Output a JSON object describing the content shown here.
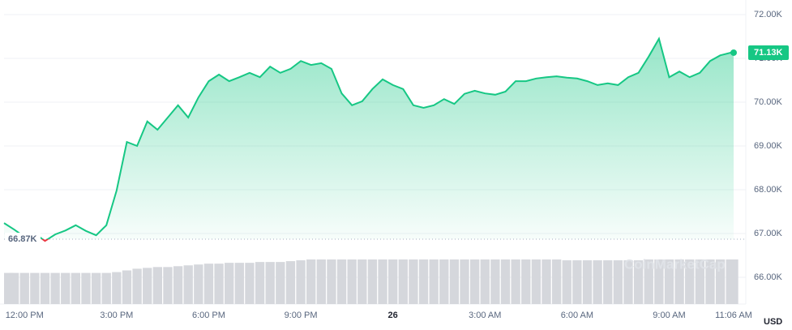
{
  "chart_data": {
    "type": "line",
    "x": [
      "11:20 AM",
      "11:40 AM",
      "12:00 PM",
      "12:20 PM",
      "12:40 PM",
      "1:00 PM",
      "1:20 PM",
      "1:40 PM",
      "2:00 PM",
      "2:20 PM",
      "2:40 PM",
      "3:00 PM",
      "3:20 PM",
      "3:40 PM",
      "4:00 PM",
      "4:20 PM",
      "4:40 PM",
      "5:00 PM",
      "5:20 PM",
      "5:40 PM",
      "6:00 PM",
      "6:20 PM",
      "6:40 PM",
      "7:00 PM",
      "7:20 PM",
      "7:40 PM",
      "8:00 PM",
      "8:20 PM",
      "8:40 PM",
      "9:00 PM",
      "9:20 PM",
      "9:40 PM",
      "10:00 PM",
      "10:20 PM",
      "10:40 PM",
      "11:00 PM",
      "11:20 PM",
      "11:40 PM",
      "12:00 AM",
      "12:20 AM",
      "12:40 AM",
      "1:00 AM",
      "1:20 AM",
      "1:40 AM",
      "2:00 AM",
      "2:20 AM",
      "2:40 AM",
      "3:00 AM",
      "3:20 AM",
      "3:40 AM",
      "4:00 AM",
      "4:20 AM",
      "4:40 AM",
      "5:00 AM",
      "5:20 AM",
      "5:40 AM",
      "6:00 AM",
      "6:20 AM",
      "6:40 AM",
      "7:00 AM",
      "7:20 AM",
      "7:40 AM",
      "8:00 AM",
      "8:20 AM",
      "8:40 AM",
      "9:00 AM",
      "9:20 AM",
      "9:40 AM",
      "10:00 AM",
      "10:20 AM",
      "10:40 AM",
      "11:00 AM",
      "11:06 AM"
    ],
    "series": [
      {
        "color": "#16c784",
        "values": [
          67240,
          67090,
          66925,
          67000,
          66830,
          66980,
          67070,
          67190,
          67060,
          66960,
          67190,
          67980,
          69090,
          69000,
          69560,
          69370,
          69650,
          69930,
          69650,
          70110,
          70480,
          70630,
          70480,
          70570,
          70670,
          70570,
          70810,
          70670,
          70760,
          70940,
          70850,
          70890,
          70760,
          70200,
          69930,
          70020,
          70300,
          70520,
          70390,
          70300,
          69930,
          69870,
          69930,
          70070,
          69960,
          70190,
          70260,
          70200,
          70170,
          70240,
          70480,
          70480,
          70540,
          70570,
          70590,
          70560,
          70540,
          70480,
          70390,
          70430,
          70390,
          70570,
          70670,
          71040,
          71450,
          70570,
          70700,
          70570,
          70670,
          70940,
          71070,
          71130,
          71130
        ]
      }
    ],
    "below_color": "#ea3943",
    "volume": [
      37,
      37,
      37,
      37,
      37,
      37,
      37,
      37,
      37,
      37,
      37,
      38,
      40,
      42,
      43,
      44,
      44,
      45,
      46,
      47,
      48,
      48,
      49,
      49,
      49,
      50,
      50,
      50,
      51,
      52,
      53,
      53,
      53,
      53,
      53,
      53,
      53,
      53,
      53,
      53,
      53,
      53,
      53,
      53,
      53,
      53,
      53,
      53,
      53,
      53,
      53,
      53,
      53,
      53,
      53,
      52,
      52,
      52,
      52,
      52,
      52,
      52,
      52,
      53,
      53,
      53,
      53,
      53,
      53,
      53,
      53,
      53,
      53
    ],
    "volume_color": "#d5d7dc",
    "ylim": [
      65390,
      72240
    ],
    "yticks": [
      {
        "value": 66000,
        "label": "66.00K"
      },
      {
        "value": 67000,
        "label": "67.00K"
      },
      {
        "value": 68000,
        "label": "68.00K"
      },
      {
        "value": 69000,
        "label": "69.00K"
      },
      {
        "value": 70000,
        "label": "70.00K"
      },
      {
        "value": 71000,
        "label": "71.00K"
      },
      {
        "value": 72000,
        "label": "72.00K"
      }
    ],
    "xlim": [
      "11:20 AM",
      "11:06 AM"
    ],
    "xticks": [
      "12:00 PM",
      "3:00 PM",
      "6:00 PM",
      "9:00 PM",
      {
        "value": "12:00 AM",
        "label": "26"
      },
      "3:00 AM",
      "6:00 AM",
      "9:00 AM",
      "11:06 AM"
    ],
    "grid": true,
    "baseline": {
      "value": 66870,
      "label": "66.87K"
    },
    "last_price": {
      "value": 71130,
      "label": "71.13K"
    },
    "unit": "USD",
    "watermark": "CoinMarketCap"
  }
}
